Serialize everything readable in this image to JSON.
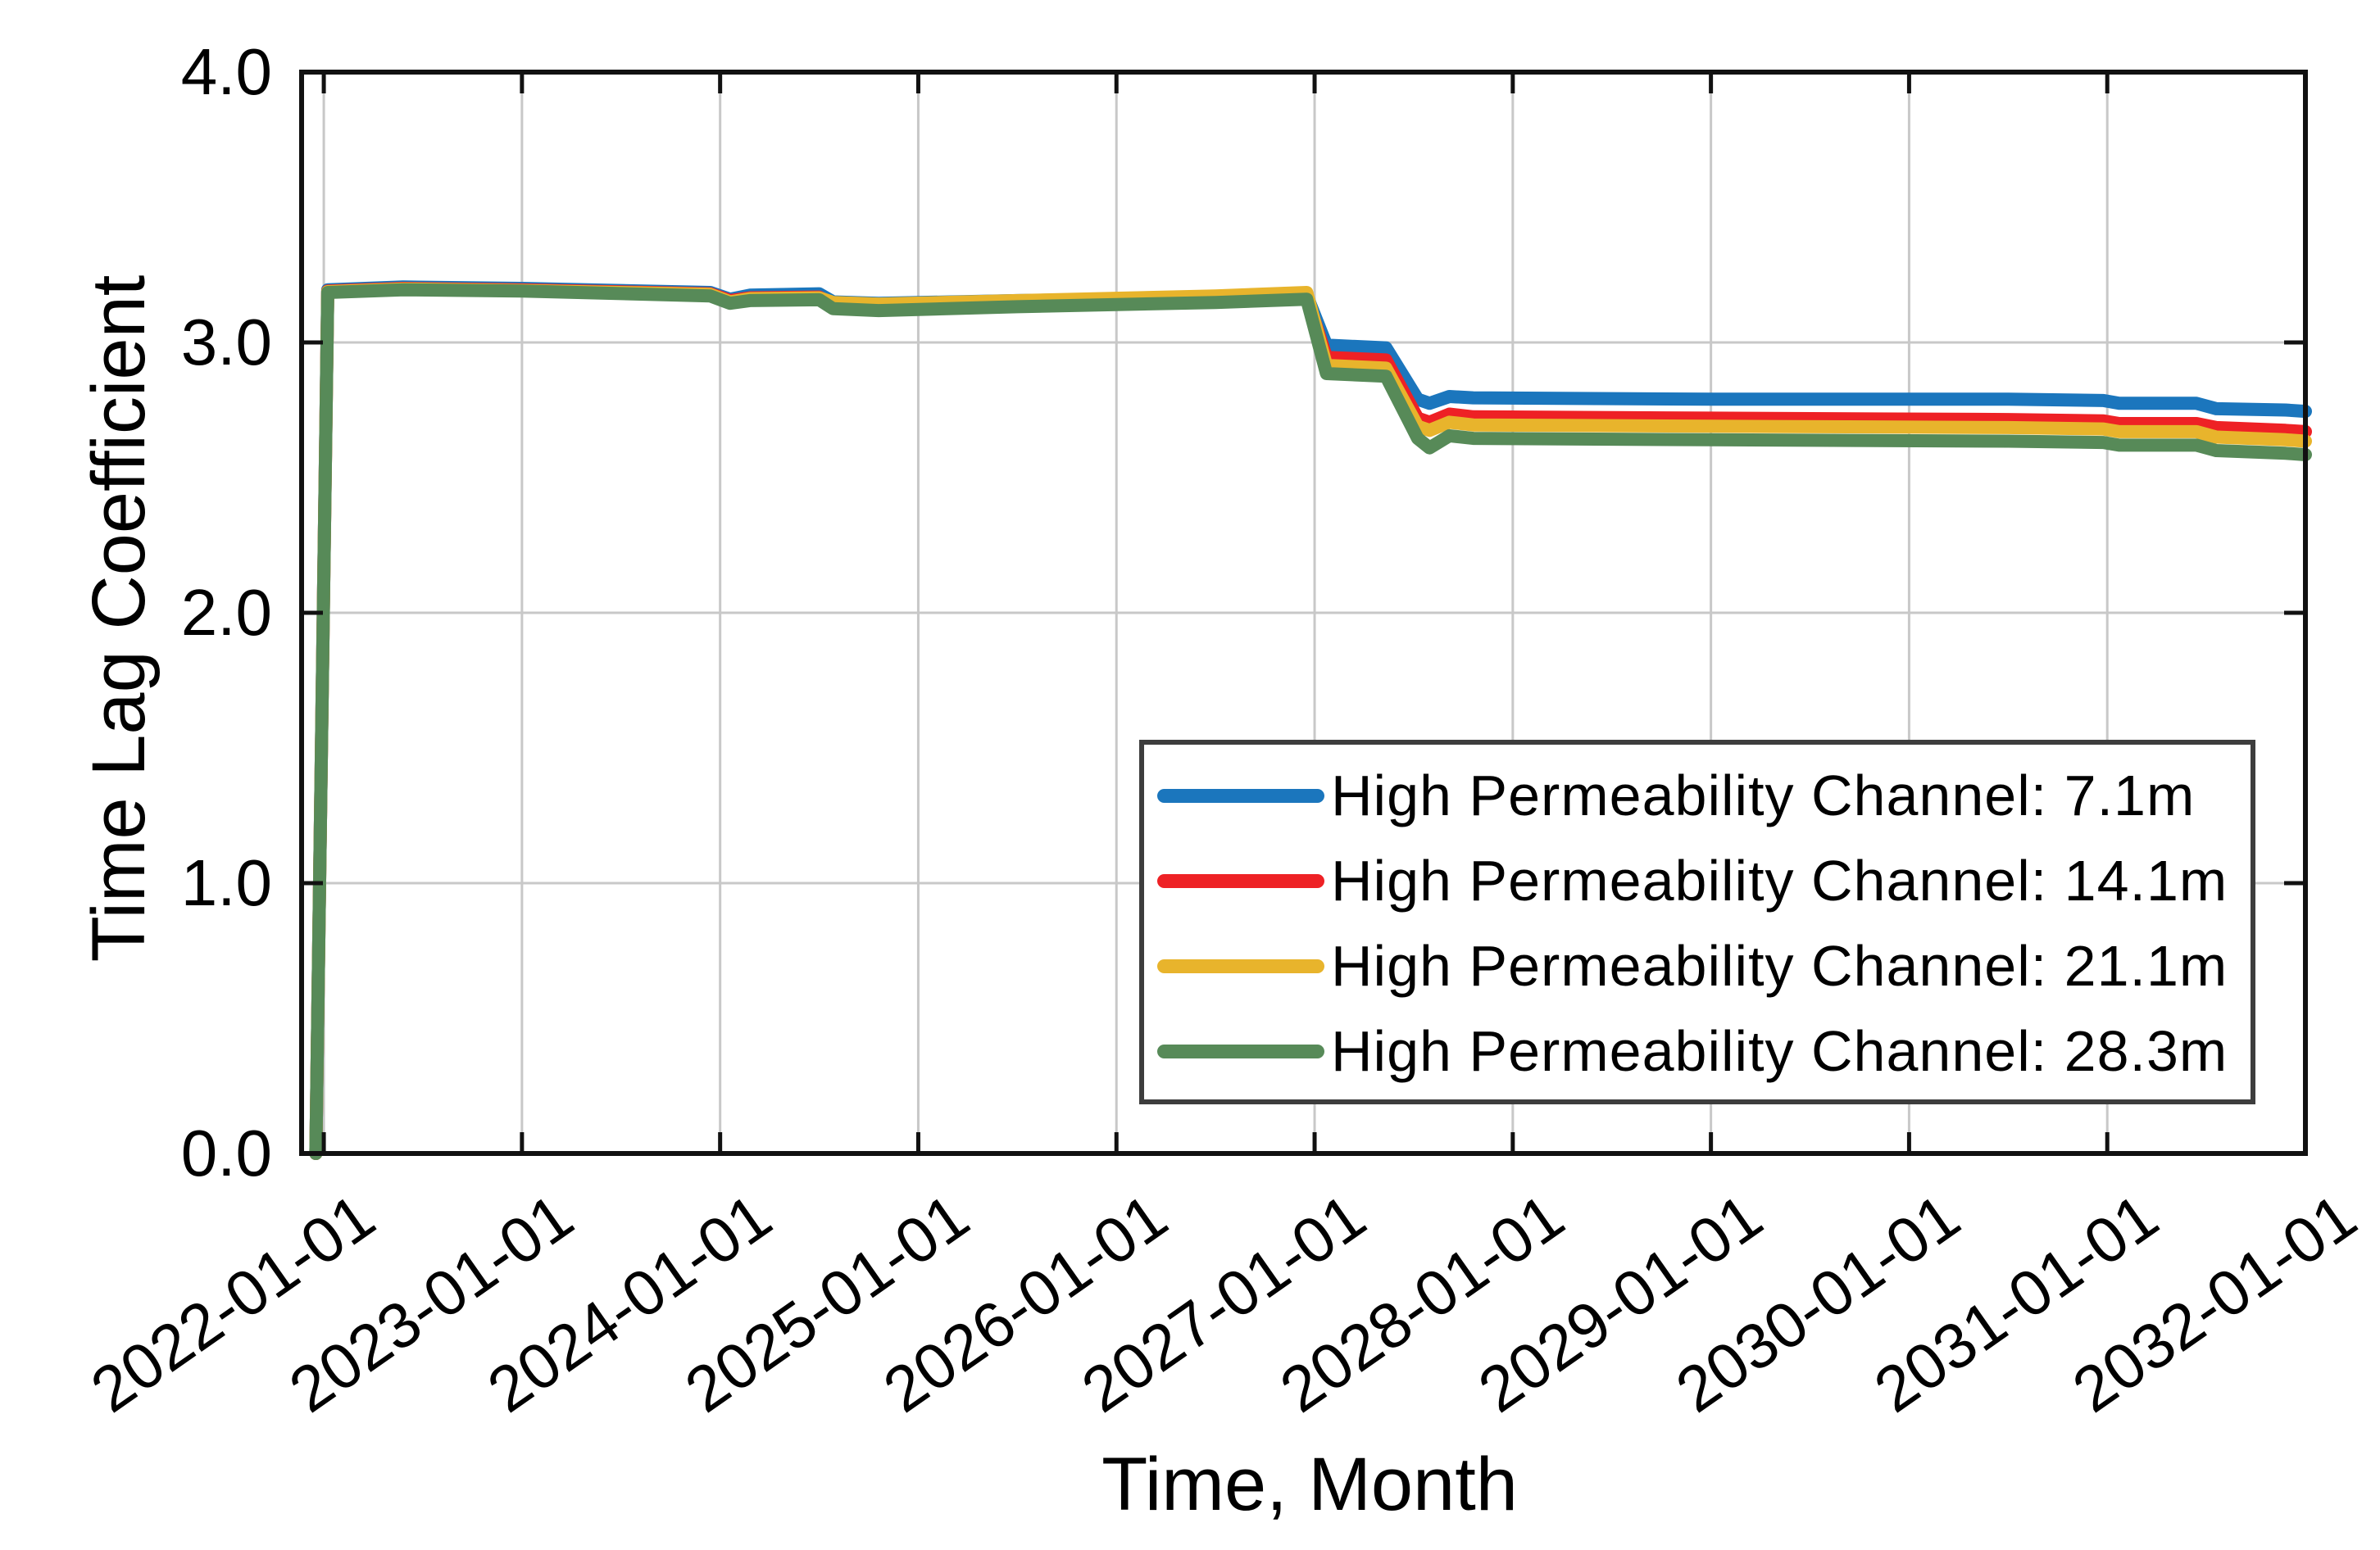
{
  "axes": {
    "y_title": "Time Lag Coefficient",
    "x_title": "Time, Month"
  },
  "legend": {
    "items": [
      {
        "label": "High Permeability Channel: 7.1m",
        "color": "#1b76bd"
      },
      {
        "label": "High Permeability Channel: 14.1m",
        "color": "#ee2125"
      },
      {
        "label": "High Permeability Channel: 21.1m",
        "color": "#e8b42c"
      },
      {
        "label": "High Permeability Channel: 28.3m",
        "color": "#578a58"
      }
    ]
  },
  "chart_data": {
    "type": "line",
    "title": "",
    "xlabel": "Time, Month",
    "ylabel": "Time Lag Coefficient",
    "grid": true,
    "grid_color": "#c8c8c8",
    "axis_color": "#111111",
    "legend_position": "lower right inside",
    "xlim": [
      2021.888,
      2032.0
    ],
    "ylim": [
      0.0,
      4.0
    ],
    "x_tick_years": [
      2022,
      2023,
      2024,
      2025,
      2026,
      2027,
      2028,
      2029,
      2030,
      2031,
      2032
    ],
    "x_tick_labels": [
      "2022-01-01",
      "2023-01-01",
      "2024-01-01",
      "2025-01-01",
      "2026-01-01",
      "2027-01-01",
      "2028-01-01",
      "2029-01-01",
      "2030-01-01",
      "2031-01-01",
      "2032-01-01"
    ],
    "y_ticks": [
      0.0,
      1.0,
      2.0,
      3.0,
      4.0
    ],
    "y_tick_labels": [
      "0.0",
      "1.0",
      "2.0",
      "3.0",
      "4.0"
    ],
    "x_shared": [
      2021.96,
      2022.02,
      2022.4,
      2023.0,
      2023.95,
      2024.05,
      2024.15,
      2024.5,
      2024.57,
      2024.8,
      2025.5,
      2026.5,
      2026.96,
      2027.06,
      2027.36,
      2027.52,
      2027.58,
      2027.68,
      2027.8,
      2029.0,
      2030.5,
      2030.98,
      2031.06,
      2031.45,
      2031.55,
      2031.9,
      2032.0
    ],
    "series": [
      {
        "name": "High Permeability Channel: 7.1m",
        "color": "#1b76bd",
        "values": [
          0.0,
          3.195,
          3.205,
          3.2,
          3.185,
          3.16,
          3.175,
          3.18,
          3.15,
          3.145,
          3.155,
          3.165,
          3.175,
          2.99,
          2.98,
          2.79,
          2.775,
          2.8,
          2.795,
          2.79,
          2.79,
          2.785,
          2.775,
          2.775,
          2.755,
          2.75,
          2.745
        ]
      },
      {
        "name": "High Permeability Channel: 14.1m",
        "color": "#ee2125",
        "values": [
          0.0,
          3.19,
          3.2,
          3.195,
          3.18,
          3.155,
          3.165,
          3.168,
          3.14,
          3.135,
          3.148,
          3.158,
          3.168,
          2.945,
          2.935,
          2.72,
          2.705,
          2.735,
          2.725,
          2.72,
          2.715,
          2.71,
          2.7,
          2.7,
          2.685,
          2.675,
          2.67
        ]
      },
      {
        "name": "High Permeability Channel: 21.1m",
        "color": "#e8b42c",
        "values": [
          0.0,
          3.188,
          3.198,
          3.192,
          3.178,
          3.15,
          3.162,
          3.165,
          3.148,
          3.142,
          3.155,
          3.172,
          3.185,
          2.915,
          2.905,
          2.69,
          2.675,
          2.705,
          2.695,
          2.69,
          2.685,
          2.68,
          2.67,
          2.67,
          2.65,
          2.64,
          2.635
        ]
      },
      {
        "name": "High Permeability Channel: 28.3m",
        "color": "#578a58",
        "values": [
          0.0,
          3.185,
          3.195,
          3.19,
          3.172,
          3.145,
          3.155,
          3.158,
          3.125,
          3.118,
          3.132,
          3.148,
          3.16,
          2.885,
          2.875,
          2.645,
          2.61,
          2.655,
          2.645,
          2.64,
          2.635,
          2.63,
          2.62,
          2.62,
          2.6,
          2.59,
          2.585
        ]
      }
    ]
  }
}
